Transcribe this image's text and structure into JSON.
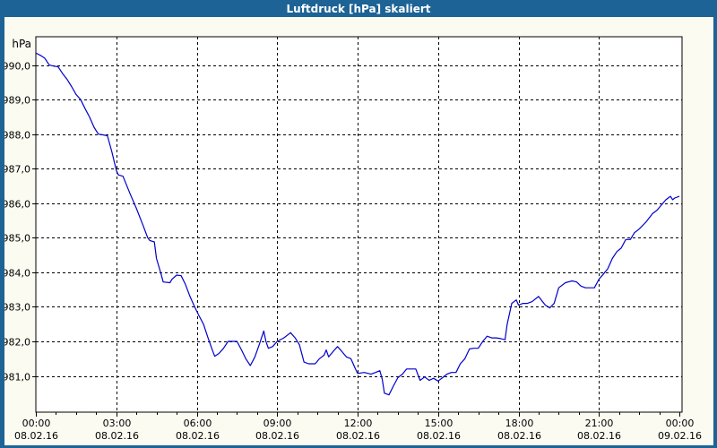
{
  "window": {
    "title": "Luftdruck [hPa] skaliert",
    "title_bar_color": "#1d6395",
    "border_color": "#1d6395",
    "background_color": "#fbfbf2"
  },
  "chart_data": {
    "type": "line",
    "title": "Luftdruck [hPa] skaliert",
    "plot_bg_color": "#ffffff",
    "grid_color": "#000000",
    "grid_style": "dashed",
    "y_axis": {
      "unit_label": "hPa",
      "range": [
        979.95,
        990.82
      ],
      "tick_values": [
        990,
        989,
        988,
        987,
        986,
        985,
        984,
        983,
        982,
        981
      ],
      "tick_labels": [
        "990,0",
        "989,0",
        "988,0",
        "987,0",
        "986,0",
        "985,0",
        "984,0",
        "983,0",
        "982,0",
        "981,0"
      ]
    },
    "x_axis": {
      "range_hours": [
        0,
        24
      ],
      "major_tick_interval_hours": 3,
      "minor_tick_interval_hours": 0.75,
      "ticks": [
        {
          "hour": 0,
          "time": "00:00",
          "date": "08.02.16"
        },
        {
          "hour": 3,
          "time": "03:00",
          "date": "08.02.16"
        },
        {
          "hour": 6,
          "time": "06:00",
          "date": "08.02.16"
        },
        {
          "hour": 9,
          "time": "09:00",
          "date": "08.02.16"
        },
        {
          "hour": 12,
          "time": "12:00",
          "date": "08.02.16"
        },
        {
          "hour": 15,
          "time": "15:00",
          "date": "08.02.16"
        },
        {
          "hour": 18,
          "time": "18:00",
          "date": "08.02.16"
        },
        {
          "hour": 21,
          "time": "21:00",
          "date": "08.02.16"
        },
        {
          "hour": 24,
          "time": "00:00",
          "date": "09.02.16"
        }
      ]
    },
    "series": [
      {
        "name": "Luftdruck",
        "color": "#0000cc",
        "points": [
          [
            0.0,
            990.35
          ],
          [
            0.17,
            990.28
          ],
          [
            0.33,
            990.2
          ],
          [
            0.5,
            990.0
          ],
          [
            0.67,
            989.97
          ],
          [
            0.83,
            989.95
          ],
          [
            1.0,
            989.75
          ],
          [
            1.17,
            989.58
          ],
          [
            1.33,
            989.38
          ],
          [
            1.5,
            989.15
          ],
          [
            1.67,
            989.0
          ],
          [
            1.83,
            988.75
          ],
          [
            2.0,
            988.5
          ],
          [
            2.17,
            988.2
          ],
          [
            2.33,
            988.0
          ],
          [
            2.5,
            987.98
          ],
          [
            2.67,
            987.95
          ],
          [
            2.83,
            987.5
          ],
          [
            3.0,
            986.95
          ],
          [
            3.08,
            986.82
          ],
          [
            3.25,
            986.78
          ],
          [
            3.5,
            986.3
          ],
          [
            3.75,
            985.85
          ],
          [
            4.0,
            985.35
          ],
          [
            4.17,
            985.0
          ],
          [
            4.25,
            984.92
          ],
          [
            4.42,
            984.88
          ],
          [
            4.5,
            984.4
          ],
          [
            4.67,
            983.95
          ],
          [
            4.75,
            983.72
          ],
          [
            5.0,
            983.7
          ],
          [
            5.08,
            983.8
          ],
          [
            5.25,
            983.92
          ],
          [
            5.42,
            983.9
          ],
          [
            5.58,
            983.65
          ],
          [
            5.75,
            983.3
          ],
          [
            5.92,
            983.0
          ],
          [
            6.08,
            982.75
          ],
          [
            6.25,
            982.5
          ],
          [
            6.42,
            982.1
          ],
          [
            6.58,
            981.75
          ],
          [
            6.67,
            981.57
          ],
          [
            6.83,
            981.65
          ],
          [
            7.0,
            981.8
          ],
          [
            7.17,
            982.0
          ],
          [
            7.5,
            982.0
          ],
          [
            7.67,
            981.75
          ],
          [
            7.83,
            981.5
          ],
          [
            8.0,
            981.3
          ],
          [
            8.17,
            981.55
          ],
          [
            8.33,
            981.9
          ],
          [
            8.5,
            982.3
          ],
          [
            8.58,
            982.0
          ],
          [
            8.67,
            981.8
          ],
          [
            8.83,
            981.85
          ],
          [
            9.0,
            982.0
          ],
          [
            9.25,
            982.1
          ],
          [
            9.5,
            982.25
          ],
          [
            9.67,
            982.1
          ],
          [
            9.83,
            981.9
          ],
          [
            10.0,
            981.4
          ],
          [
            10.17,
            981.35
          ],
          [
            10.42,
            981.35
          ],
          [
            10.58,
            981.5
          ],
          [
            10.75,
            981.6
          ],
          [
            10.83,
            981.75
          ],
          [
            10.92,
            981.55
          ],
          [
            11.08,
            981.7
          ],
          [
            11.25,
            981.85
          ],
          [
            11.42,
            981.7
          ],
          [
            11.58,
            981.55
          ],
          [
            11.75,
            981.5
          ],
          [
            11.92,
            981.2
          ],
          [
            12.0,
            981.07
          ],
          [
            12.25,
            981.1
          ],
          [
            12.5,
            981.05
          ],
          [
            12.67,
            981.1
          ],
          [
            12.83,
            981.15
          ],
          [
            12.92,
            980.9
          ],
          [
            13.0,
            980.5
          ],
          [
            13.17,
            980.45
          ],
          [
            13.33,
            980.7
          ],
          [
            13.5,
            980.95
          ],
          [
            13.67,
            981.05
          ],
          [
            13.83,
            981.2
          ],
          [
            14.0,
            981.2
          ],
          [
            14.17,
            981.2
          ],
          [
            14.33,
            980.87
          ],
          [
            14.5,
            980.97
          ],
          [
            14.67,
            980.87
          ],
          [
            14.83,
            980.93
          ],
          [
            15.0,
            980.85
          ],
          [
            15.17,
            980.95
          ],
          [
            15.33,
            981.05
          ],
          [
            15.5,
            981.1
          ],
          [
            15.67,
            981.1
          ],
          [
            15.83,
            981.35
          ],
          [
            16.0,
            981.5
          ],
          [
            16.17,
            981.78
          ],
          [
            16.33,
            981.8
          ],
          [
            16.5,
            981.8
          ],
          [
            16.67,
            982.0
          ],
          [
            16.83,
            982.15
          ],
          [
            17.0,
            982.1
          ],
          [
            17.17,
            982.1
          ],
          [
            17.33,
            982.08
          ],
          [
            17.5,
            982.05
          ],
          [
            17.58,
            982.5
          ],
          [
            17.75,
            983.1
          ],
          [
            17.92,
            983.2
          ],
          [
            18.0,
            983.05
          ],
          [
            18.17,
            983.1
          ],
          [
            18.33,
            983.1
          ],
          [
            18.5,
            983.15
          ],
          [
            18.75,
            983.3
          ],
          [
            19.0,
            983.05
          ],
          [
            19.17,
            982.97
          ],
          [
            19.33,
            983.1
          ],
          [
            19.5,
            983.55
          ],
          [
            19.75,
            983.7
          ],
          [
            20.0,
            983.75
          ],
          [
            20.17,
            983.72
          ],
          [
            20.33,
            983.6
          ],
          [
            20.5,
            983.55
          ],
          [
            20.83,
            983.55
          ],
          [
            21.0,
            983.8
          ],
          [
            21.17,
            983.95
          ],
          [
            21.33,
            984.1
          ],
          [
            21.5,
            984.4
          ],
          [
            21.67,
            984.6
          ],
          [
            21.83,
            984.7
          ],
          [
            22.0,
            984.95
          ],
          [
            22.17,
            984.95
          ],
          [
            22.33,
            985.15
          ],
          [
            22.5,
            985.25
          ],
          [
            22.75,
            985.45
          ],
          [
            23.0,
            985.7
          ],
          [
            23.17,
            985.8
          ],
          [
            23.33,
            985.95
          ],
          [
            23.5,
            986.1
          ],
          [
            23.67,
            986.2
          ],
          [
            23.75,
            986.1
          ],
          [
            23.83,
            986.15
          ],
          [
            24.0,
            986.2
          ]
        ]
      }
    ]
  }
}
